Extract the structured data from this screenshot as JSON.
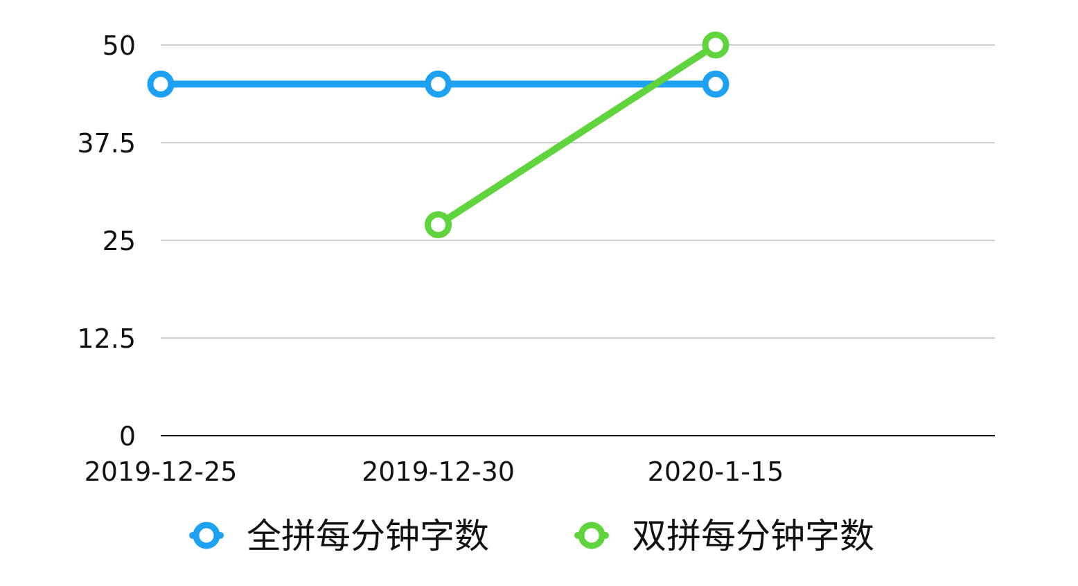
{
  "chart_data": {
    "type": "line",
    "title": "",
    "xlabel": "",
    "ylabel": "",
    "categories": [
      "2019-12-25",
      "2019-12-30",
      "2020-1-15"
    ],
    "ylim": [
      0,
      50
    ],
    "yticks": [
      "0",
      "12.5",
      "25",
      "37.5",
      "50"
    ],
    "grid": true,
    "legend": "bottom",
    "series": [
      {
        "name": "全拼每分钟字数",
        "color": "#1DA1F2",
        "values": [
          45,
          45,
          45
        ]
      },
      {
        "name": "双拼每分钟字数",
        "color": "#5FD43C",
        "values": [
          null,
          27,
          50
        ]
      }
    ]
  }
}
